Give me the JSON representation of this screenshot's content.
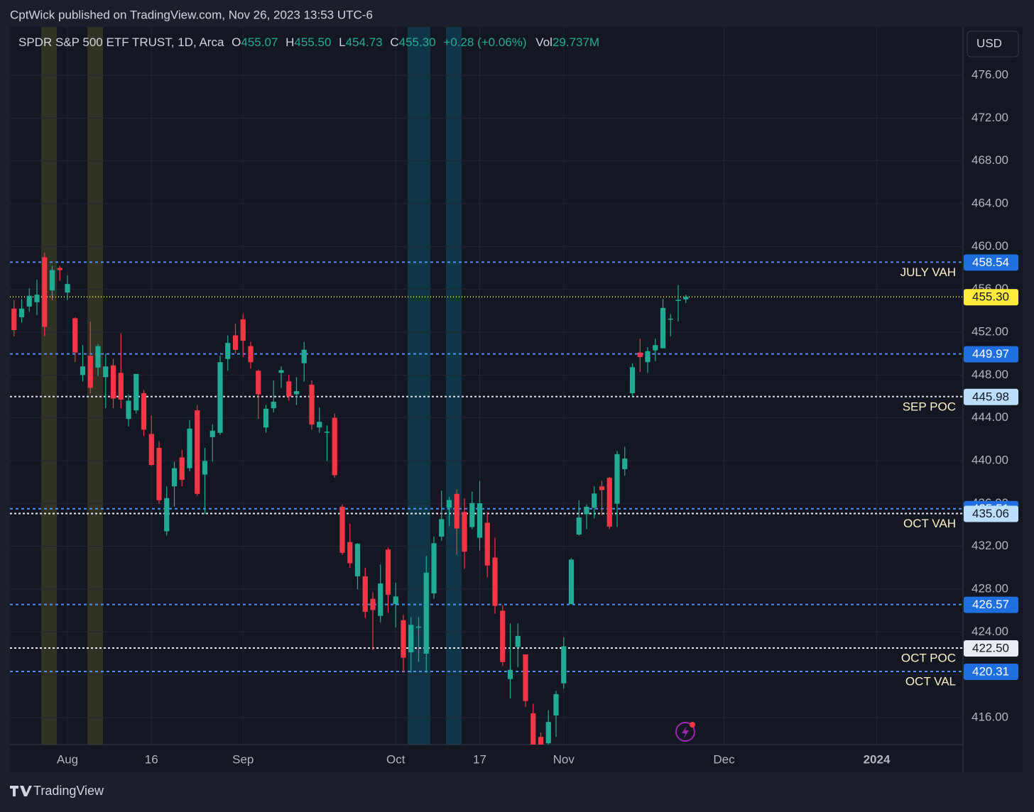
{
  "header": "CptWick published on TradingView.com, Nov 26, 2023 13:53 UTC-6",
  "footer": "TradingView",
  "currency": "USD",
  "chart_data": {
    "type": "candlestick",
    "symbol": "SPDR S&P 500 ETF TRUST, 1D, Arca",
    "legend_labels": [
      "O",
      "H",
      "L",
      "C",
      "Vol"
    ],
    "last_bar_labels": [
      "455.07",
      "455.50",
      "454.73",
      "455.30"
    ],
    "change_label": "+0.28 (+0.06%)",
    "volume_label": "29.737M",
    "categories": [
      null,
      null,
      null,
      null,
      null,
      null,
      null,
      "Aug",
      null,
      null,
      null,
      null,
      null,
      null,
      null,
      null,
      null,
      null,
      "16",
      null,
      null,
      null,
      null,
      null,
      null,
      null,
      null,
      null,
      null,
      null,
      "Sep",
      null,
      null,
      null,
      null,
      null,
      null,
      null,
      null,
      null,
      null,
      null,
      null,
      null,
      null,
      null,
      null,
      null,
      null,
      null,
      "Oct",
      null,
      null,
      null,
      null,
      null,
      null,
      null,
      null,
      null,
      null,
      "17",
      null,
      null,
      null,
      null,
      null,
      null,
      null,
      null,
      null,
      null,
      "Nov",
      null,
      null,
      null,
      null,
      null,
      null,
      null,
      null,
      null,
      null,
      null,
      null,
      null,
      null,
      null,
      null,
      null,
      null,
      null,
      null,
      "Dec",
      null,
      null,
      null,
      null,
      null,
      null,
      null,
      null,
      null,
      null,
      null,
      null,
      null,
      null,
      null,
      null,
      null,
      null,
      null,
      "2024"
    ],
    "open": [
      454.2,
      453.4,
      454.4,
      454.8,
      459.0,
      455.9,
      458.0,
      455.7,
      453.3,
      448.0,
      449.8,
      448.7,
      447.8,
      448.9,
      448.2,
      443.9,
      444.7,
      446.3,
      442.5,
      441.2,
      433.4,
      437.6,
      440.3,
      439.3,
      444.7,
      438.7,
      442.2,
      442.6,
      449.5,
      451.7,
      453.2,
      450.7,
      448.4,
      443.1,
      444.9,
      448.2,
      447.4,
      446.2,
      449.1,
      447.1,
      443.1,
      442.7,
      444.0,
      435.7,
      432.4,
      429.2,
      429.2,
      427.1,
      425.5,
      431.7,
      426.6,
      425.1,
      422.1,
      424.4,
      421.97,
      427.6,
      432.9,
      435.6,
      436.9,
      435.2,
      433.8,
      432.8,
      434.2,
      430.95,
      425.98,
      419.6,
      422.6,
      421.9,
      416.4,
      414.2,
      413.6,
      416.2,
      419.2,
      426.6,
      433.1,
      435.0,
      435.6,
      437.6,
      438.4,
      435.98,
      439.2,
      446.3,
      450.1,
      449.2,
      450.3,
      450.5,
      453.2,
      454.98,
      455.07,
      null,
      null,
      null,
      null,
      null,
      null,
      null,
      null,
      null,
      null,
      null,
      null,
      null,
      null,
      null,
      null,
      null,
      null,
      null,
      null,
      null,
      null,
      null,
      null,
      null
    ],
    "high": [
      455.0,
      455.1,
      456.1,
      456.9,
      459.4,
      458.2,
      458.2,
      457.3,
      453.4,
      450.8,
      453.0,
      450.9,
      450.0,
      449.5,
      451.9,
      446.2,
      448.1,
      446.6,
      444.2,
      441.8,
      437.6,
      439.9,
      441.0,
      443.8,
      445.2,
      441.2,
      443.4,
      449.8,
      451.7,
      452.8,
      453.7,
      451.1,
      448.5,
      445.2,
      447.5,
      448.8,
      448.0,
      447.8,
      451.1,
      447.5,
      444.97,
      443.3,
      444.4,
      435.9,
      434.1,
      432.3,
      430.0,
      427.7,
      430.3,
      431.9,
      428.6,
      425.6,
      425.4,
      425.4,
      431.1,
      432.9,
      437.2,
      436.6,
      437.3,
      436.5,
      437.1,
      438.1,
      435.2,
      432.8,
      426.5,
      424.8,
      424.8,
      421.9,
      417.3,
      414.6,
      416.7,
      418.5,
      423.5,
      430.9,
      436.3,
      435.9,
      437.6,
      438.1,
      438.5,
      440.9,
      441.3,
      449.1,
      451.4,
      450.6,
      451.4,
      455.1,
      453.7,
      456.4,
      455.5,
      null,
      null,
      null,
      null,
      null,
      null,
      null,
      null,
      null,
      null,
      null,
      null,
      null,
      null,
      null,
      null,
      null,
      null,
      null,
      null,
      null,
      null,
      null,
      null,
      null
    ],
    "low": [
      451.6,
      452.9,
      453.9,
      453.6,
      451.6,
      455.0,
      456.8,
      455.0,
      449.2,
      447.4,
      446.3,
      447.9,
      444.9,
      444.9,
      444.9,
      443.2,
      444.4,
      442.3,
      439.5,
      436.0,
      433.0,
      435.7,
      437.6,
      439.0,
      436.7,
      435.0,
      439.9,
      442.4,
      448.4,
      450.0,
      449.7,
      448.6,
      443.9,
      442.6,
      444.5,
      446.8,
      445.6,
      445.2,
      447.4,
      442.9,
      442.6,
      439.97,
      438.4,
      431.2,
      429.99,
      428.0,
      425.3,
      422.3,
      424.9,
      425.8,
      424.4,
      420.2,
      420.2,
      421.2,
      420.2,
      427.1,
      432.5,
      433.9,
      431.2,
      429.9,
      433.6,
      431.6,
      429.1,
      425.7,
      420.8,
      417.8,
      420.7,
      417.0,
      411.6,
      409.2,
      412.2,
      414.2,
      418.7,
      426.6,
      433.0,
      433.6,
      434.6,
      434.9,
      433.6,
      433.8,
      438.6,
      446.0,
      448.3,
      448.2,
      449.3,
      450.5,
      451.6,
      453.0,
      454.73,
      null,
      null,
      null,
      null,
      null,
      null,
      null,
      null,
      null,
      null,
      null,
      null,
      null,
      null,
      null,
      null,
      null,
      null,
      null,
      null,
      null,
      null,
      null,
      null,
      null
    ],
    "close": [
      452.2,
      454.2,
      455.4,
      455.5,
      452.5,
      457.8,
      457.8,
      456.5,
      450.1,
      448.8,
      446.8,
      450.7,
      448.8,
      445.8,
      445.7,
      445.6,
      448.1,
      442.9,
      439.6,
      436.3,
      436.5,
      439.3,
      438.2,
      443.0,
      436.9,
      439.97,
      442.8,
      449.2,
      451.0,
      450.35,
      451.2,
      449.2,
      446.2,
      444.85,
      445.5,
      448.45,
      445.99,
      446.5,
      450.36,
      443.37,
      443.63,
      442.71,
      438.64,
      431.39,
      430.42,
      432.23,
      425.88,
      426.05,
      428.52,
      427.48,
      427.31,
      421.59,
      424.66,
      424.5,
      429.54,
      432.29,
      434.54,
      436.32,
      433.66,
      431.5,
      436.04,
      436.02,
      430.21,
      426.43,
      421.19,
      420.46,
      423.63,
      417.55,
      412.55,
      410.68,
      415.59,
      418.2,
      422.66,
      430.76,
      434.69,
      435.69,
      436.93,
      437.25,
      433.84,
      440.61,
      440.19,
      448.73,
      449.68,
      450.23,
      450.79,
      454.26,
      453.27,
      455.02,
      455.3,
      null,
      null,
      null,
      null,
      null,
      null,
      null,
      null,
      null,
      null,
      null,
      null,
      null,
      null,
      null,
      null,
      null,
      null,
      null,
      null,
      null,
      null,
      null,
      null,
      null
    ],
    "up_color": "#22ab94",
    "down_color": "#f23645",
    "ylim": [
      413.48,
      480.51
    ],
    "yticks": [
      {
        "value": 416,
        "label": "416.00"
      },
      {
        "value": 420,
        "label": "420.00"
      },
      {
        "value": 424,
        "label": "424.00"
      },
      {
        "value": 428,
        "label": "428.00"
      },
      {
        "value": 432,
        "label": "432.00"
      },
      {
        "value": 436,
        "label": "436.00"
      },
      {
        "value": 440,
        "label": "440.00"
      },
      {
        "value": 444,
        "label": "444.00"
      },
      {
        "value": 448,
        "label": "448.00"
      },
      {
        "value": 452,
        "label": "452.00"
      },
      {
        "value": 456,
        "label": "456.00"
      },
      {
        "value": 460,
        "label": "460.00"
      },
      {
        "value": 464,
        "label": "464.00"
      },
      {
        "value": 468,
        "label": "468.00"
      },
      {
        "value": 472,
        "label": "472.00"
      },
      {
        "value": 476,
        "label": "476.00"
      }
    ],
    "grid": true,
    "levels": [
      {
        "price": 458.54,
        "name": "JULY VAH",
        "tag_color": "#1f6fe0",
        "line_color": "#4d8ff0"
      },
      {
        "price": 455.3,
        "price_label": "455.30",
        "tag_color": "#ffeb3b",
        "line_color": "#e8d840"
      },
      {
        "price": 449.97,
        "tag_color": "#1f6fe0",
        "line_color": "#4d8ff0"
      },
      {
        "price": 445.98,
        "name": "SEP POC",
        "tag_color": "#bbdefb",
        "line_color": "#d8dee9"
      },
      {
        "price": 435.51,
        "tag_color": "#1f6fe0",
        "line_color": "#4d8ff0"
      },
      {
        "price": 435.06,
        "name": "OCT VAH",
        "tag_color": "#bbdefb",
        "line_color": "#e6e9ef"
      },
      {
        "price": 426.57,
        "tag_color": "#1f6fe0",
        "line_color": "#4d8ff0"
      },
      {
        "price": 422.5,
        "price_label": "422.50",
        "name": "OCT POC",
        "tag_color": "#e8ecf4",
        "line_color": "#e6e9ef"
      },
      {
        "price": 420.31,
        "name": "OCT VAL",
        "tag_color": "#1f6fe0",
        "line_color": "#4d8ff0"
      }
    ]
  }
}
